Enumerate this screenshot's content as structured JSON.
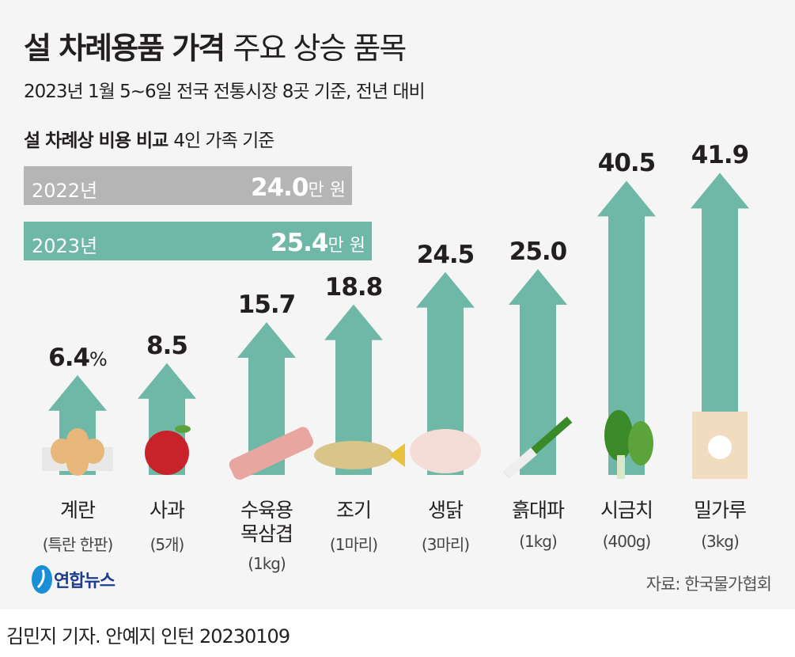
{
  "header": {
    "title_bold": "설 차례용품 가격",
    "title_light": "주요 상승 품목",
    "subtitle": "2023년 1월 5~6일 전국 전통시장 8곳 기준, 전년 대비"
  },
  "cost_compare": {
    "title_bold": "설 차례상 비용 비교",
    "title_light": "4인 가족 기준",
    "bars": [
      {
        "year": "2022년",
        "value": "24.0",
        "unit": "만 원",
        "color": "#b5b5b5"
      },
      {
        "year": "2023년",
        "value": "25.4",
        "unit": "만 원",
        "color": "#6fb8a8"
      }
    ]
  },
  "chart_data": {
    "type": "bar",
    "ylabel": "",
    "unit": "%",
    "arrow_color": "#6fb8a8",
    "categories": [
      "계란",
      "사과",
      "수육용 목삼겹",
      "조기",
      "생닭",
      "흙대파",
      "시금치",
      "밀가루"
    ],
    "category_units": [
      "(특란 한판)",
      "(5개)",
      "(1kg)",
      "(1마리)",
      "(3마리)",
      "(1kg)",
      "(400g)",
      "(3kg)"
    ],
    "values": [
      6.4,
      8.5,
      15.7,
      18.8,
      24.5,
      25.0,
      40.5,
      41.9
    ],
    "labels": [
      "6.4",
      "8.5",
      "15.7",
      "18.8",
      "24.5",
      "25.0",
      "40.5",
      "41.9"
    ],
    "first_label_suffix": "%",
    "icons": [
      "eggs-icon",
      "apple-icon",
      "pork-belly-icon",
      "croaker-fish-icon",
      "chicken-icon",
      "green-onion-icon",
      "spinach-icon",
      "flour-bag-icon"
    ]
  },
  "footer": {
    "logo": "연합뉴스",
    "source": "자료: 한국물가협회",
    "credit": "김민지 기자. 안예지 인턴  20230109"
  }
}
